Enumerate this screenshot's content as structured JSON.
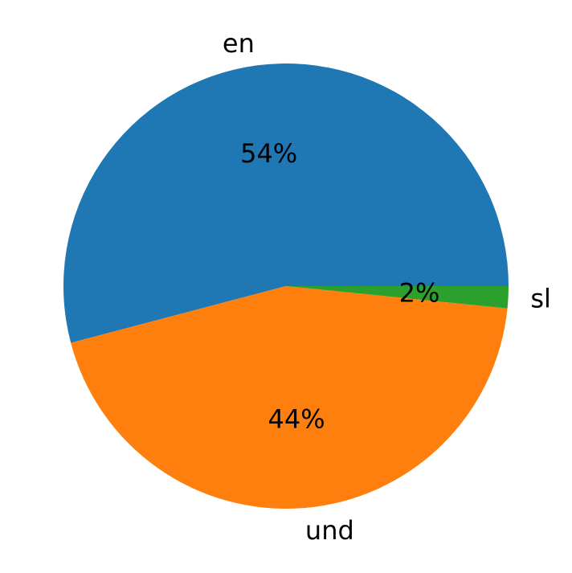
{
  "chart_data": {
    "type": "pie",
    "start_angle_deg": 0,
    "direction": "counterclockwise",
    "slices": [
      {
        "label": "en",
        "value": 54.1,
        "pct_label": "54%",
        "color": "#1f77b4"
      },
      {
        "label": "und",
        "value": 44.3,
        "pct_label": "44%",
        "color": "#ff7f0e"
      },
      {
        "label": "sl",
        "value": 1.6,
        "pct_label": "2%",
        "color": "#2ca02c"
      }
    ]
  }
}
